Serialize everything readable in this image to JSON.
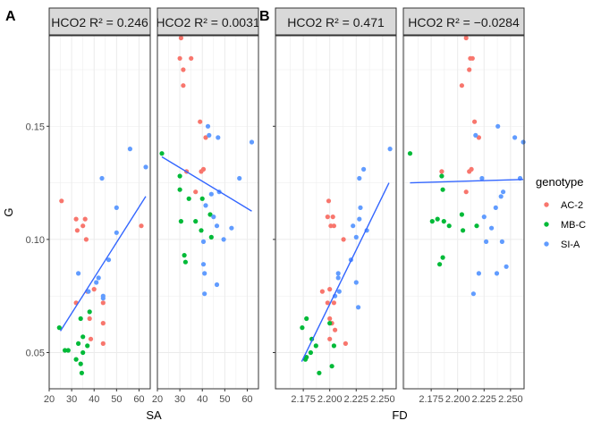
{
  "tags": [
    "A",
    "B"
  ],
  "legend": {
    "title": "genotype",
    "items": [
      {
        "label": "AC-2",
        "color": "#F8766D"
      },
      {
        "label": "MB-C",
        "color": "#00BA38"
      },
      {
        "label": "SI-A",
        "color": "#619CFF"
      }
    ]
  },
  "colors": {
    "AC-2": "#F8766D",
    "MB-C": "#00BA38",
    "SI-A": "#619CFF",
    "fit": "#3366FF",
    "strip": "#D9D9D9"
  },
  "chart_data": [
    {
      "type": "scatter",
      "tag": "A",
      "xlabel": "SA",
      "ylabel": "G",
      "xlim": [
        20,
        65
      ],
      "ylim": [
        0.034,
        0.19
      ],
      "xticks": [
        20,
        30,
        40,
        50,
        60
      ],
      "xtick_labels": [
        "20",
        "30",
        "40",
        "50",
        "60"
      ],
      "yticks": [
        0.05,
        0.1,
        0.15
      ],
      "ytick_labels": [
        "0.05",
        "0.10",
        "0.15"
      ],
      "panels": [
        {
          "strip": "HCO2 R² = 0.246",
          "points": [
            {
              "g": "AC-2",
              "x": 25.5,
              "y": 0.117
            },
            {
              "g": "AC-2",
              "x": 32,
              "y": 0.109
            },
            {
              "g": "AC-2",
              "x": 36,
              "y": 0.109
            },
            {
              "g": "AC-2",
              "x": 32.5,
              "y": 0.104
            },
            {
              "g": "AC-2",
              "x": 35,
              "y": 0.106
            },
            {
              "g": "AC-2",
              "x": 36.5,
              "y": 0.1
            },
            {
              "g": "AC-2",
              "x": 37,
              "y": 0.077
            },
            {
              "g": "AC-2",
              "x": 40,
              "y": 0.078
            },
            {
              "g": "AC-2",
              "x": 32,
              "y": 0.072
            },
            {
              "g": "AC-2",
              "x": 44,
              "y": 0.072
            },
            {
              "g": "AC-2",
              "x": 38,
              "y": 0.065
            },
            {
              "g": "AC-2",
              "x": 44,
              "y": 0.063
            },
            {
              "g": "AC-2",
              "x": 38.5,
              "y": 0.056
            },
            {
              "g": "AC-2",
              "x": 44,
              "y": 0.054
            },
            {
              "g": "AC-2",
              "x": 61,
              "y": 0.106
            },
            {
              "g": "MB-C",
              "x": 24.5,
              "y": 0.061
            },
            {
              "g": "MB-C",
              "x": 34,
              "y": 0.065
            },
            {
              "g": "MB-C",
              "x": 38,
              "y": 0.068
            },
            {
              "g": "MB-C",
              "x": 35,
              "y": 0.057
            },
            {
              "g": "MB-C",
              "x": 33,
              "y": 0.054
            },
            {
              "g": "MB-C",
              "x": 37,
              "y": 0.053
            },
            {
              "g": "MB-C",
              "x": 27,
              "y": 0.051
            },
            {
              "g": "MB-C",
              "x": 28.5,
              "y": 0.051
            },
            {
              "g": "MB-C",
              "x": 35,
              "y": 0.05
            },
            {
              "g": "MB-C",
              "x": 32,
              "y": 0.047
            },
            {
              "g": "MB-C",
              "x": 34,
              "y": 0.045
            },
            {
              "g": "MB-C",
              "x": 34.5,
              "y": 0.041
            },
            {
              "g": "SI-A",
              "x": 56,
              "y": 0.14
            },
            {
              "g": "SI-A",
              "x": 63,
              "y": 0.132
            },
            {
              "g": "SI-A",
              "x": 43.5,
              "y": 0.127
            },
            {
              "g": "SI-A",
              "x": 50,
              "y": 0.114
            },
            {
              "g": "SI-A",
              "x": 50,
              "y": 0.103
            },
            {
              "g": "SI-A",
              "x": 46.5,
              "y": 0.091
            },
            {
              "g": "SI-A",
              "x": 33,
              "y": 0.085
            },
            {
              "g": "SI-A",
              "x": 42,
              "y": 0.083
            },
            {
              "g": "SI-A",
              "x": 41,
              "y": 0.081
            },
            {
              "g": "SI-A",
              "x": 37.5,
              "y": 0.077
            },
            {
              "g": "SI-A",
              "x": 44,
              "y": 0.075
            },
            {
              "g": "SI-A",
              "x": 44,
              "y": 0.074
            }
          ],
          "fit": [
            [
              25,
              0.0595
            ],
            [
              63,
              0.119
            ]
          ]
        },
        {
          "strip": "HCO2 R² = 0.0031",
          "points": [
            {
              "g": "AC-2",
              "x": 30.5,
              "y": 0.189
            },
            {
              "g": "AC-2",
              "x": 30,
              "y": 0.18
            },
            {
              "g": "AC-2",
              "x": 35,
              "y": 0.18
            },
            {
              "g": "AC-2",
              "x": 31.5,
              "y": 0.175
            },
            {
              "g": "AC-2",
              "x": 31.5,
              "y": 0.168
            },
            {
              "g": "AC-2",
              "x": 39,
              "y": 0.152
            },
            {
              "g": "AC-2",
              "x": 41.5,
              "y": 0.145
            },
            {
              "g": "AC-2",
              "x": 33,
              "y": 0.13
            },
            {
              "g": "AC-2",
              "x": 39.5,
              "y": 0.13
            },
            {
              "g": "AC-2",
              "x": 40.5,
              "y": 0.131
            },
            {
              "g": "AC-2",
              "x": 37,
              "y": 0.121
            },
            {
              "g": "MB-C",
              "x": 22,
              "y": 0.138
            },
            {
              "g": "MB-C",
              "x": 30,
              "y": 0.128
            },
            {
              "g": "MB-C",
              "x": 30,
              "y": 0.122
            },
            {
              "g": "MB-C",
              "x": 34,
              "y": 0.118
            },
            {
              "g": "MB-C",
              "x": 40,
              "y": 0.118
            },
            {
              "g": "MB-C",
              "x": 30.5,
              "y": 0.108
            },
            {
              "g": "MB-C",
              "x": 37,
              "y": 0.108
            },
            {
              "g": "MB-C",
              "x": 43.5,
              "y": 0.111
            },
            {
              "g": "MB-C",
              "x": 39.5,
              "y": 0.104
            },
            {
              "g": "MB-C",
              "x": 44,
              "y": 0.101
            },
            {
              "g": "MB-C",
              "x": 32,
              "y": 0.093
            },
            {
              "g": "MB-C",
              "x": 32.5,
              "y": 0.09
            },
            {
              "g": "SI-A",
              "x": 42.5,
              "y": 0.15
            },
            {
              "g": "SI-A",
              "x": 43,
              "y": 0.146
            },
            {
              "g": "SI-A",
              "x": 47,
              "y": 0.145
            },
            {
              "g": "SI-A",
              "x": 62,
              "y": 0.143
            },
            {
              "g": "SI-A",
              "x": 56.5,
              "y": 0.127
            },
            {
              "g": "SI-A",
              "x": 44,
              "y": 0.12
            },
            {
              "g": "SI-A",
              "x": 47.5,
              "y": 0.121
            },
            {
              "g": "SI-A",
              "x": 41.5,
              "y": 0.115
            },
            {
              "g": "SI-A",
              "x": 45,
              "y": 0.11
            },
            {
              "g": "SI-A",
              "x": 40.5,
              "y": 0.099
            },
            {
              "g": "SI-A",
              "x": 53,
              "y": 0.105
            },
            {
              "g": "SI-A",
              "x": 46.5,
              "y": 0.106
            },
            {
              "g": "SI-A",
              "x": 49.5,
              "y": 0.1
            },
            {
              "g": "SI-A",
              "x": 40.5,
              "y": 0.089
            },
            {
              "g": "SI-A",
              "x": 41,
              "y": 0.085
            },
            {
              "g": "SI-A",
              "x": 46.5,
              "y": 0.08
            },
            {
              "g": "SI-A",
              "x": 41,
              "y": 0.076
            }
          ],
          "fit": [
            [
              22,
              0.1365
            ],
            [
              62,
              0.1125
            ]
          ]
        }
      ]
    },
    {
      "type": "scatter",
      "tag": "B",
      "xlabel": "FD",
      "ylabel": "",
      "xlim": [
        2.1487,
        2.2628
      ],
      "ylim": [
        0.034,
        0.19
      ],
      "xticks": [
        2.175,
        2.2,
        2.225,
        2.25
      ],
      "xtick_labels": [
        "2.175",
        "2.200",
        "2.225",
        "2.250"
      ],
      "yticks": [
        0.05,
        0.1,
        0.15
      ],
      "ytick_labels": [
        "",
        "",
        ""
      ],
      "panels": [
        {
          "strip": "HCO2 R² = 0.471",
          "points": [
            {
              "g": "AC-2",
              "x": 2.199,
              "y": 0.117
            },
            {
              "g": "AC-2",
              "x": 2.203,
              "y": 0.11
            },
            {
              "g": "AC-2",
              "x": 2.198,
              "y": 0.11
            },
            {
              "g": "AC-2",
              "x": 2.201,
              "y": 0.106
            },
            {
              "g": "AC-2",
              "x": 2.204,
              "y": 0.106
            },
            {
              "g": "AC-2",
              "x": 2.213,
              "y": 0.1
            },
            {
              "g": "AC-2",
              "x": 2.193,
              "y": 0.077
            },
            {
              "g": "AC-2",
              "x": 2.2,
              "y": 0.078
            },
            {
              "g": "AC-2",
              "x": 2.198,
              "y": 0.072
            },
            {
              "g": "AC-2",
              "x": 2.204,
              "y": 0.072
            },
            {
              "g": "AC-2",
              "x": 2.2,
              "y": 0.065
            },
            {
              "g": "AC-2",
              "x": 2.202,
              "y": 0.063
            },
            {
              "g": "AC-2",
              "x": 2.205,
              "y": 0.06
            },
            {
              "g": "AC-2",
              "x": 2.2,
              "y": 0.056
            },
            {
              "g": "AC-2",
              "x": 2.215,
              "y": 0.054
            },
            {
              "g": "MB-C",
              "x": 2.178,
              "y": 0.065
            },
            {
              "g": "MB-C",
              "x": 2.174,
              "y": 0.061
            },
            {
              "g": "MB-C",
              "x": 2.2,
              "y": 0.063
            },
            {
              "g": "MB-C",
              "x": 2.183,
              "y": 0.056
            },
            {
              "g": "MB-C",
              "x": 2.187,
              "y": 0.053
            },
            {
              "g": "MB-C",
              "x": 2.204,
              "y": 0.053
            },
            {
              "g": "MB-C",
              "x": 2.182,
              "y": 0.05
            },
            {
              "g": "MB-C",
              "x": 2.178,
              "y": 0.048
            },
            {
              "g": "MB-C",
              "x": 2.177,
              "y": 0.047
            },
            {
              "g": "MB-C",
              "x": 2.202,
              "y": 0.044
            },
            {
              "g": "MB-C",
              "x": 2.19,
              "y": 0.041
            },
            {
              "g": "SI-A",
              "x": 2.257,
              "y": 0.14
            },
            {
              "g": "SI-A",
              "x": 2.232,
              "y": 0.131
            },
            {
              "g": "SI-A",
              "x": 2.228,
              "y": 0.127
            },
            {
              "g": "SI-A",
              "x": 2.229,
              "y": 0.114
            },
            {
              "g": "SI-A",
              "x": 2.228,
              "y": 0.109
            },
            {
              "g": "SI-A",
              "x": 2.222,
              "y": 0.106
            },
            {
              "g": "SI-A",
              "x": 2.235,
              "y": 0.104
            },
            {
              "g": "SI-A",
              "x": 2.225,
              "y": 0.101
            },
            {
              "g": "SI-A",
              "x": 2.22,
              "y": 0.091
            },
            {
              "g": "SI-A",
              "x": 2.208,
              "y": 0.085
            },
            {
              "g": "SI-A",
              "x": 2.208,
              "y": 0.083
            },
            {
              "g": "SI-A",
              "x": 2.225,
              "y": 0.081
            },
            {
              "g": "SI-A",
              "x": 2.209,
              "y": 0.077
            },
            {
              "g": "SI-A",
              "x": 2.205,
              "y": 0.075
            },
            {
              "g": "SI-A",
              "x": 2.227,
              "y": 0.07
            }
          ],
          "fit": [
            [
              2.1735,
              0.046
            ],
            [
              2.256,
              0.125
            ]
          ]
        },
        {
          "strip": "HCO2 R² = −0.0284",
          "points": [
            {
              "g": "AC-2",
              "x": 2.208,
              "y": 0.189
            },
            {
              "g": "AC-2",
              "x": 2.212,
              "y": 0.18
            },
            {
              "g": "AC-2",
              "x": 2.214,
              "y": 0.18
            },
            {
              "g": "AC-2",
              "x": 2.211,
              "y": 0.175
            },
            {
              "g": "AC-2",
              "x": 2.204,
              "y": 0.168
            },
            {
              "g": "AC-2",
              "x": 2.216,
              "y": 0.152
            },
            {
              "g": "AC-2",
              "x": 2.22,
              "y": 0.145
            },
            {
              "g": "AC-2",
              "x": 2.185,
              "y": 0.13
            },
            {
              "g": "AC-2",
              "x": 2.211,
              "y": 0.13
            },
            {
              "g": "AC-2",
              "x": 2.213,
              "y": 0.131
            },
            {
              "g": "AC-2",
              "x": 2.208,
              "y": 0.121
            },
            {
              "g": "MB-C",
              "x": 2.155,
              "y": 0.138
            },
            {
              "g": "MB-C",
              "x": 2.185,
              "y": 0.128
            },
            {
              "g": "MB-C",
              "x": 2.186,
              "y": 0.122
            },
            {
              "g": "MB-C",
              "x": 2.204,
              "y": 0.111
            },
            {
              "g": "MB-C",
              "x": 2.181,
              "y": 0.109
            },
            {
              "g": "MB-C",
              "x": 2.187,
              "y": 0.108
            },
            {
              "g": "MB-C",
              "x": 2.192,
              "y": 0.106
            },
            {
              "g": "MB-C",
              "x": 2.176,
              "y": 0.108
            },
            {
              "g": "MB-C",
              "x": 2.205,
              "y": 0.104
            },
            {
              "g": "MB-C",
              "x": 2.218,
              "y": 0.106
            },
            {
              "g": "MB-C",
              "x": 2.186,
              "y": 0.092
            },
            {
              "g": "MB-C",
              "x": 2.183,
              "y": 0.089
            },
            {
              "g": "SI-A",
              "x": 2.238,
              "y": 0.15
            },
            {
              "g": "SI-A",
              "x": 2.254,
              "y": 0.145
            },
            {
              "g": "SI-A",
              "x": 2.262,
              "y": 0.143
            },
            {
              "g": "SI-A",
              "x": 2.217,
              "y": 0.146
            },
            {
              "g": "SI-A",
              "x": 2.223,
              "y": 0.127
            },
            {
              "g": "SI-A",
              "x": 2.259,
              "y": 0.127
            },
            {
              "g": "SI-A",
              "x": 2.243,
              "y": 0.121
            },
            {
              "g": "SI-A",
              "x": 2.241,
              "y": 0.119
            },
            {
              "g": "SI-A",
              "x": 2.236,
              "y": 0.114
            },
            {
              "g": "SI-A",
              "x": 2.232,
              "y": 0.105
            },
            {
              "g": "SI-A",
              "x": 2.242,
              "y": 0.099
            },
            {
              "g": "SI-A",
              "x": 2.227,
              "y": 0.099
            },
            {
              "g": "SI-A",
              "x": 2.225,
              "y": 0.11
            },
            {
              "g": "SI-A",
              "x": 2.246,
              "y": 0.088
            },
            {
              "g": "SI-A",
              "x": 2.22,
              "y": 0.085
            },
            {
              "g": "SI-A",
              "x": 2.237,
              "y": 0.085
            },
            {
              "g": "SI-A",
              "x": 2.215,
              "y": 0.076
            }
          ],
          "fit": [
            [
              2.155,
              0.125
            ],
            [
              2.262,
              0.1265
            ]
          ]
        }
      ]
    }
  ]
}
